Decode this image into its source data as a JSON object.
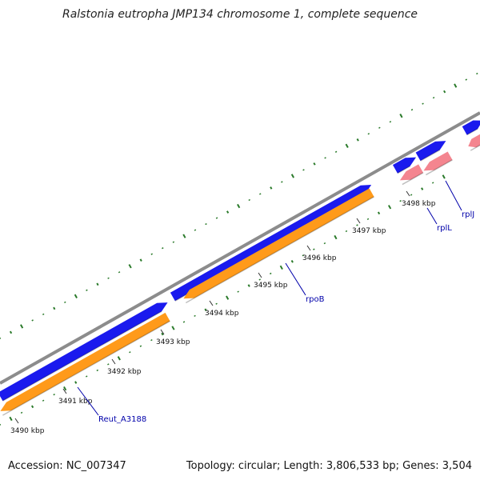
{
  "title": "Ralstonia eutropha JMP134 chromosome 1, complete sequence",
  "footer": {
    "accession": "Accession: NC_007347",
    "genome_info": "Topology: circular; Length: 3,806,533 bp; Genes: 3,504"
  },
  "colors": {
    "backbone": "#8c8c8c",
    "forward_gene": "#1a1aee",
    "reverse_cds": "#ff9a1a",
    "reverse_rna": "#f4858f",
    "gc_ticks": "#2a7a2a",
    "label": "#0000aa"
  },
  "scale": {
    "labels": [
      "3490 kbp",
      "3491 kbp",
      "3492 kbp",
      "3493 kbp",
      "3494 kbp",
      "3495 kbp",
      "3496 kbp",
      "3497 kbp",
      "3498 kbp"
    ]
  },
  "genes": [
    {
      "label": "Reut_A3188"
    },
    {
      "label": "rpoB"
    },
    {
      "label": "rplL"
    },
    {
      "label": "rplJ"
    }
  ]
}
